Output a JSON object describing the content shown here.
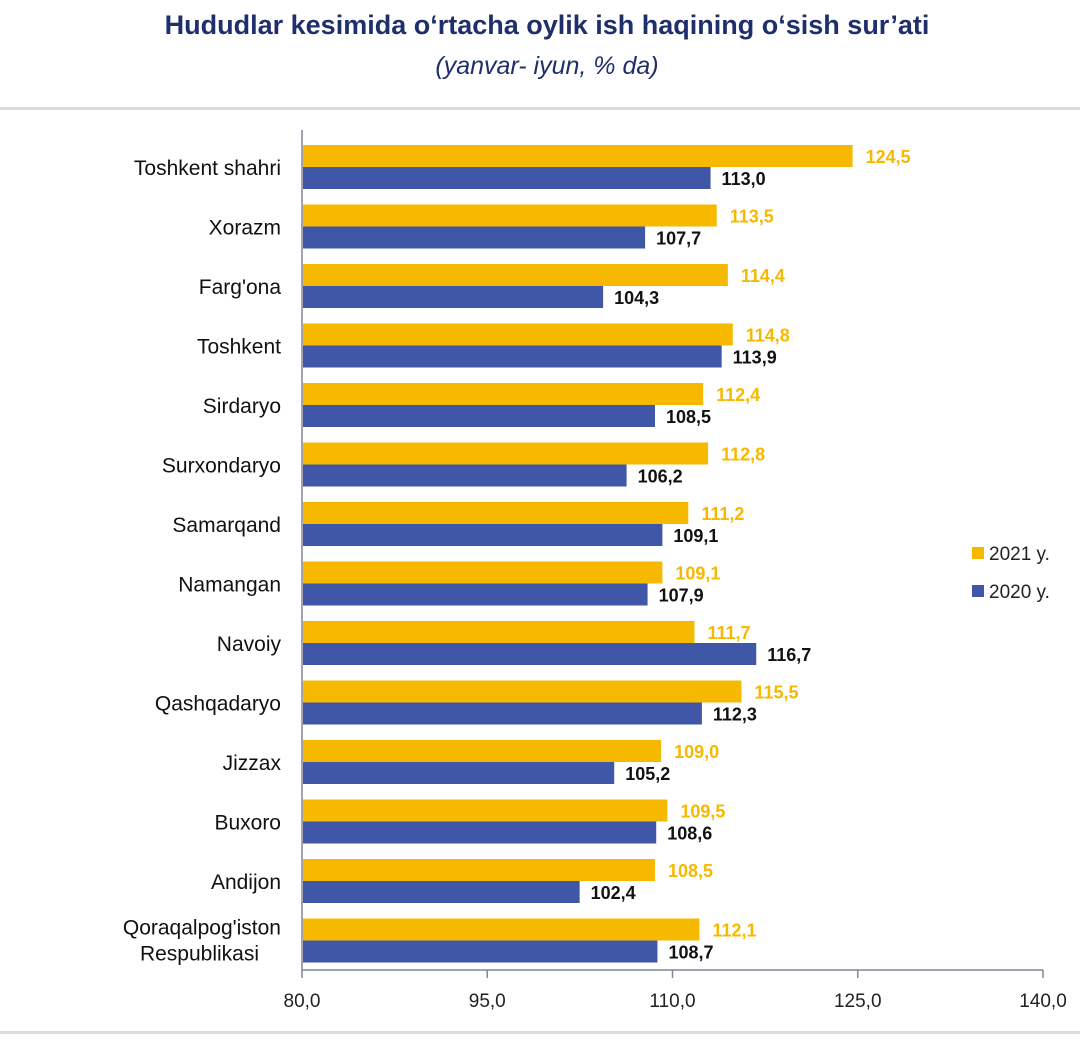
{
  "header": {
    "title": "Hududlar kesimida o‘rtacha oylik ish haqining o‘sish sur’ati",
    "subtitle": "(yanvar- iyun, % da)"
  },
  "colors": {
    "series_2021": "#f7b800",
    "series_2020": "#3f57a6",
    "axis": "#7f8794"
  },
  "chart_data": {
    "type": "bar",
    "orientation": "horizontal",
    "categories": [
      "Toshkent shahri",
      "Xorazm",
      "Farg'ona",
      "Toshkent",
      "Sirdaryo",
      "Surxondaryo",
      "Samarqand",
      "Namangan",
      "Navoiy",
      "Qashqadaryo",
      "Jizzax",
      "Buxoro",
      "Andijon",
      "Qoraqalpog'iston Respublikasi"
    ],
    "series": [
      {
        "name": "2021 y.",
        "color": "#f7b800",
        "values": [
          124.5,
          113.5,
          114.4,
          114.8,
          112.4,
          112.8,
          111.2,
          109.1,
          111.7,
          115.5,
          109.0,
          109.5,
          108.5,
          112.1
        ],
        "labels": [
          "124,5",
          "113,5",
          "114,4",
          "114,8",
          "112,4",
          "112,8",
          "111,2",
          "109,1",
          "111,7",
          "115,5",
          "109,0",
          "109,5",
          "108,5",
          "112,1"
        ]
      },
      {
        "name": "2020 y.",
        "color": "#3f57a6",
        "values": [
          113.0,
          107.7,
          104.3,
          113.9,
          108.5,
          106.2,
          109.1,
          107.9,
          116.7,
          112.3,
          105.2,
          108.6,
          102.4,
          108.7
        ],
        "labels": [
          "113,0",
          "107,7",
          "104,3",
          "113,9",
          "108,5",
          "106,2",
          "109,1",
          "107,9",
          "116,7",
          "112,3",
          "105,2",
          "108,6",
          "102,4",
          "108,7"
        ]
      }
    ],
    "xlim": [
      80.0,
      140.0
    ],
    "xticks": [
      80.0,
      95.0,
      110.0,
      125.0,
      140.0
    ],
    "xtick_labels": [
      "80,0",
      "95,0",
      "110,0",
      "125,0",
      "140,0"
    ],
    "grid": false,
    "legend_position": "right"
  }
}
